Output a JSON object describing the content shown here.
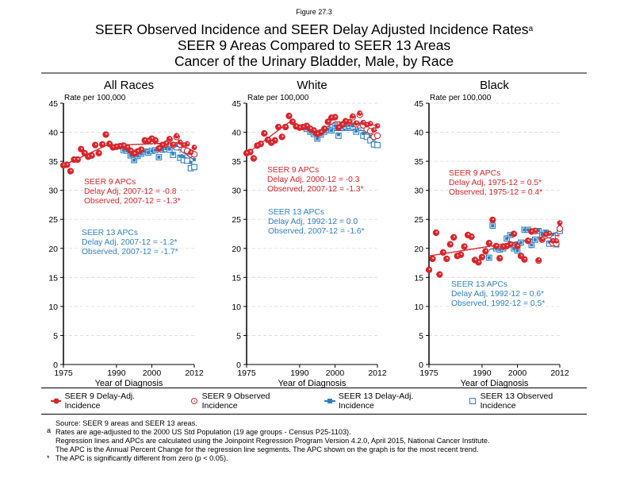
{
  "figure_label": "Figure 27.3",
  "title_lines": [
    "SEER Observed Incidence and SEER Delay Adjusted Incidence Rates",
    "SEER 9 Areas Compared to SEER 13 Areas",
    "Cancer of the Urinary Bladder, Male, by Race"
  ],
  "title_superscript": "a",
  "colors": {
    "seer9": "#d7262c",
    "seer13": "#2f7fbf",
    "grid": "#d9d9d9"
  },
  "legend": {
    "items": [
      "SEER 9 Delay-Adj. Incidence",
      "SEER 9 Observed Incidence",
      "SEER 13 Delay-Adj. Incidence",
      "SEER 13 Observed Incidence"
    ]
  },
  "footnotes": {
    "source": "Source: SEER 9 areas and SEER 13 areas.",
    "mark_a": "a",
    "a": "Rates are age-adjusted to the 2000 US Std Population (19 age groups - Census P25-1103).",
    "regression": "Regression lines and APCs are calculated using the Joinpoint Regression Program Version 4.2.0, April 2015, National Cancer Institute.",
    "apc": "The APC is the Annual Percent Change for the regression line segments. The APC shown on the graph is for the most recent trend.",
    "mark_star": "*",
    "star": "The APC is significantly different from zero (p < 0.05)."
  },
  "chart_data": [
    {
      "type": "scatter",
      "title": "All Races",
      "ylabel": "Rate per 100,000",
      "xlabel": "Year of Diagnosis",
      "xlim": [
        1975,
        2012
      ],
      "ylim": [
        0,
        45
      ],
      "xticks": [
        1975,
        1990,
        2000,
        2012
      ],
      "yticks": [
        0,
        5,
        10,
        15,
        20,
        25,
        30,
        35,
        40,
        45
      ],
      "grid": true,
      "seer9_apc": [
        "SEER 9 APCs",
        "Delay Adj, 2007-12 = -0.8",
        "Observed, 2007-12 = -1.3*"
      ],
      "seer13_apc": [
        "SEER 13 APCs",
        "Delay Adj, 2007-12 = -1.2*",
        "Observed, 2007-12 = -1.7*"
      ],
      "seer9_years": [
        1975,
        2012
      ],
      "seer9_delay": [
        34.3,
        34.4,
        33.3,
        35.3,
        35.3,
        37.1,
        36.4,
        35.8,
        36.0,
        37.8,
        36.4,
        37.9,
        39.6,
        38.0,
        37.4,
        37.5,
        37.6,
        37.7,
        37.4,
        36.8,
        36.3,
        36.7,
        37.0,
        38.6,
        38.5,
        38.9,
        38.6,
        37.2,
        37.8,
        38.1,
        38.9,
        37.9,
        39.4,
        38.3,
        37.8,
        38.0,
        36.5,
        37.4
      ],
      "seer9_observed": [
        34.3,
        34.4,
        33.3,
        35.3,
        35.3,
        37.1,
        36.4,
        35.8,
        36.0,
        37.8,
        36.4,
        37.9,
        39.6,
        38.0,
        37.4,
        37.5,
        37.6,
        37.7,
        37.4,
        36.8,
        36.3,
        36.7,
        37.0,
        38.6,
        38.5,
        38.9,
        38.6,
        37.2,
        37.8,
        38.0,
        38.8,
        37.8,
        39.2,
        37.9,
        37.0,
        36.8,
        36.2,
        36.2
      ],
      "seer13_years": [
        1992,
        2012
      ],
      "seer13_delay": [
        36.9,
        36.8,
        36.0,
        35.2,
        35.9,
        36.3,
        36.7,
        36.5,
        36.8,
        36.9,
        35.7,
        37.0,
        37.2,
        37.1,
        36.3,
        37.7,
        35.9,
        35.8,
        36.4,
        34.8,
        35.3
      ],
      "seer13_observed": [
        36.9,
        36.8,
        36.0,
        35.2,
        35.9,
        36.3,
        36.7,
        36.5,
        36.8,
        36.9,
        35.7,
        37.0,
        37.1,
        37.0,
        36.1,
        37.4,
        35.6,
        35.2,
        35.1,
        33.8,
        34.0
      ],
      "seer9_delay_trend": [
        [
          1975,
          34.3
        ],
        [
          1987,
          37.7
        ],
        [
          2007,
          38.2
        ],
        [
          2012,
          36.7
        ]
      ],
      "seer9_observed_trend": [
        [
          1975,
          34.3
        ],
        [
          1987,
          37.7
        ],
        [
          2007,
          38.1
        ],
        [
          2012,
          35.7
        ]
      ],
      "seer13_delay_trend": [
        [
          1992,
          36.8
        ],
        [
          2007,
          37.3
        ],
        [
          2012,
          35.2
        ]
      ],
      "seer13_observed_trend": [
        [
          1992,
          36.8
        ],
        [
          2007,
          37.1
        ],
        [
          2012,
          34.2
        ]
      ]
    },
    {
      "type": "scatter",
      "title": "White",
      "ylabel": "Rate per 100,000",
      "xlabel": "Year of Diagnosis",
      "xlim": [
        1975,
        2012
      ],
      "ylim": [
        0,
        45
      ],
      "xticks": [
        1975,
        1990,
        2000,
        2012
      ],
      "yticks": [
        0,
        5,
        10,
        15,
        20,
        25,
        30,
        35,
        40,
        45
      ],
      "grid": true,
      "seer9_apc": [
        "SEER 9 APCs",
        "Delay Adj, 2000-12 = -0.3",
        "Observed, 2007-12 = -1.3*"
      ],
      "seer13_apc": [
        "SEER 13 APCs",
        "Delay Adj, 1992-12 = 0.0",
        "Observed, 2007-12 = -1.6*"
      ],
      "seer9_years": [
        1975,
        2012
      ],
      "seer9_delay": [
        36.4,
        36.6,
        35.5,
        37.7,
        38.0,
        39.8,
        38.7,
        38.2,
        38.6,
        40.9,
        39.2,
        40.9,
        42.8,
        41.8,
        41.0,
        40.8,
        40.9,
        41.1,
        40.6,
        40.3,
        39.7,
        40.0,
        40.6,
        41.8,
        42.5,
        42.6,
        40.8,
        41.3,
        41.9,
        41.8,
        42.8,
        41.6,
        43.3,
        41.7,
        41.3,
        41.5,
        40.4,
        41.1
      ],
      "seer9_observed": [
        36.4,
        36.6,
        35.5,
        37.7,
        38.0,
        39.8,
        38.7,
        38.2,
        38.6,
        40.9,
        39.2,
        40.9,
        42.8,
        41.8,
        41.0,
        40.8,
        40.9,
        41.1,
        40.6,
        40.3,
        39.7,
        40.0,
        40.6,
        41.8,
        42.5,
        42.6,
        40.8,
        41.3,
        41.9,
        41.7,
        42.6,
        41.4,
        43.0,
        41.2,
        40.5,
        40.2,
        39.2,
        39.4
      ],
      "seer13_years": [
        1992,
        2012
      ],
      "seer13_delay": [
        40.6,
        40.1,
        39.7,
        38.9,
        39.6,
        40.1,
        40.5,
        40.3,
        41.1,
        39.6,
        40.9,
        41.1,
        41.2,
        41.1,
        40.2,
        41.4,
        39.8,
        40.1,
        39.3,
        38.8,
        39.4
      ],
      "seer13_observed": [
        40.6,
        40.1,
        39.7,
        38.9,
        39.6,
        40.1,
        40.5,
        40.3,
        41.1,
        39.4,
        40.8,
        41.0,
        41.1,
        41.0,
        40.1,
        41.2,
        39.4,
        39.2,
        38.6,
        37.9,
        37.8
      ],
      "seer9_delay_trend": [
        [
          1975,
          36.3
        ],
        [
          1987,
          41.7
        ],
        [
          1995,
          39.8
        ],
        [
          2000,
          41.8
        ],
        [
          2012,
          41.2
        ]
      ],
      "seer9_observed_trend": [
        [
          1975,
          36.3
        ],
        [
          1987,
          41.7
        ],
        [
          1995,
          39.8
        ],
        [
          2000,
          41.8
        ],
        [
          2007,
          41.9
        ],
        [
          2012,
          39.5
        ]
      ],
      "seer13_delay_trend": [
        [
          1992,
          40.3
        ],
        [
          2012,
          40.3
        ]
      ],
      "seer13_observed_trend": [
        [
          1992,
          40.3
        ],
        [
          2007,
          40.6
        ],
        [
          2012,
          38.0
        ]
      ]
    },
    {
      "type": "scatter",
      "title": "Black",
      "ylabel": "Rate per 100,000",
      "xlabel": "Year of Diagnosis",
      "xlim": [
        1975,
        2012
      ],
      "ylim": [
        0,
        45
      ],
      "xticks": [
        1975,
        1990,
        2000,
        2012
      ],
      "yticks": [
        0,
        5,
        10,
        15,
        20,
        25,
        30,
        35,
        40,
        45
      ],
      "grid": true,
      "seer9_apc": [
        "SEER 9 APCs",
        "Delay Adj, 1975-12 = 0.5*",
        "Observed, 1975-12 = 0.4*"
      ],
      "seer13_apc": [
        "SEER 13 APCs",
        "Delay Adj, 1992-12 = 0.6*",
        "Observed, 1992-12 = 0.5*"
      ],
      "seer9_years": [
        1975,
        2012
      ],
      "seer9_delay": [
        16.3,
        18.2,
        22.7,
        15.5,
        19.3,
        18.2,
        20.7,
        21.9,
        18.7,
        18.9,
        20.3,
        22.3,
        22.0,
        18.0,
        17.6,
        18.5,
        19.5,
        20.9,
        24.9,
        20.4,
        18.3,
        20.3,
        20.4,
        20.7,
        22.5,
        20.4,
        18.7,
        18.1,
        21.3,
        22.9,
        23.1,
        18.0,
        21.6,
        22.4,
        22.6,
        21.3,
        21.3,
        24.4
      ],
      "seer9_observed": [
        16.3,
        18.2,
        22.7,
        15.5,
        19.3,
        18.2,
        20.7,
        21.9,
        18.7,
        18.9,
        20.3,
        22.3,
        22.0,
        18.0,
        17.6,
        18.5,
        19.5,
        20.9,
        24.9,
        20.4,
        18.3,
        20.3,
        20.4,
        20.7,
        22.5,
        20.4,
        18.7,
        18.1,
        21.3,
        22.9,
        23.0,
        17.9,
        21.5,
        22.2,
        22.3,
        20.9,
        20.8,
        23.4
      ],
      "seer13_years": [
        1992,
        2012
      ],
      "seer13_delay": [
        18.4,
        23.9,
        20.0,
        19.8,
        20.0,
        21.7,
        22.3,
        20.0,
        19.6,
        21.0,
        23.2,
        23.2,
        20.6,
        21.5,
        23.1,
        22.4,
        22.9,
        21.1,
        22.4,
        21.2,
        24.1
      ],
      "seer13_observed": [
        18.4,
        23.9,
        20.0,
        19.8,
        20.0,
        21.7,
        22.3,
        20.0,
        19.6,
        21.0,
        23.2,
        23.2,
        20.6,
        21.5,
        23.0,
        22.3,
        22.7,
        20.8,
        22.1,
        20.7,
        23.0
      ],
      "seer9_delay_trend": [
        [
          1975,
          18.7
        ],
        [
          2012,
          22.3
        ]
      ],
      "seer9_observed_trend": [
        [
          1975,
          18.7
        ],
        [
          2012,
          22.1
        ]
      ],
      "seer13_delay_trend": [
        [
          1992,
          19.8
        ],
        [
          2012,
          22.9
        ]
      ],
      "seer13_observed_trend": [
        [
          1992,
          19.7
        ],
        [
          2012,
          22.6
        ]
      ]
    }
  ]
}
